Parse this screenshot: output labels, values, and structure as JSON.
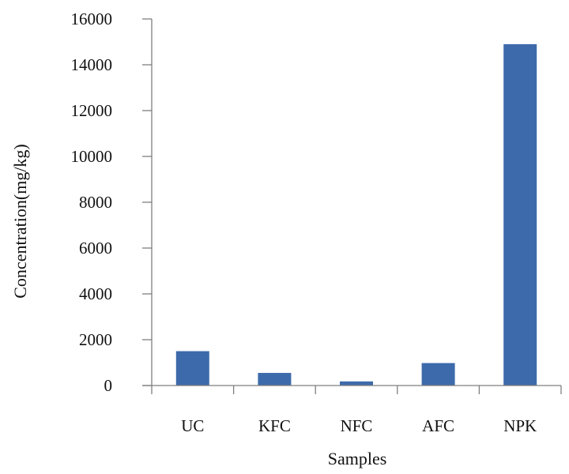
{
  "chart_data": {
    "type": "bar",
    "categories": [
      "UC",
      "KFC",
      "NFC",
      "AFC",
      "NPK"
    ],
    "values": [
      1500,
      550,
      180,
      980,
      14900
    ],
    "xlabel": "Samples",
    "ylabel": "Concentration(mg/kg)",
    "ylim": [
      0,
      16000
    ],
    "yticks": [
      "0",
      "2000",
      "4000",
      "6000",
      "8000",
      "10000",
      "12000",
      "14000",
      "16000"
    ],
    "grid": false,
    "legend": "none",
    "bar_color": "#3d6aaa"
  }
}
